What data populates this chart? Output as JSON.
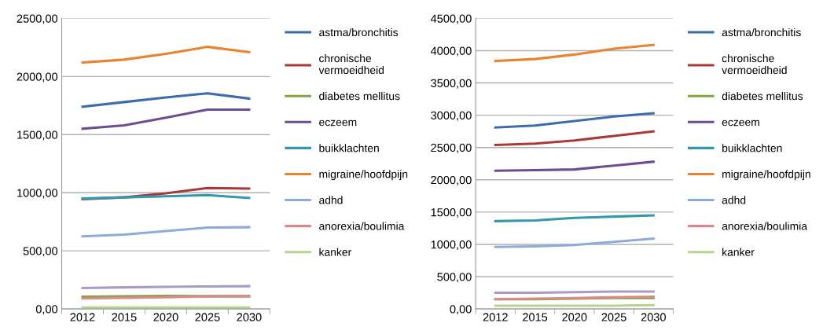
{
  "chart_data": [
    {
      "type": "line",
      "categories": [
        "2012",
        "2015",
        "2020",
        "2025",
        "2030"
      ],
      "ylim": [
        0,
        2500
      ],
      "yticks": [
        {
          "value": 0,
          "label": "0,00"
        },
        {
          "value": 500,
          "label": "500,00"
        },
        {
          "value": 1000,
          "label": "1000,00"
        },
        {
          "value": 1500,
          "label": "1500,00"
        },
        {
          "value": 2000,
          "label": "2000,00"
        },
        {
          "value": 2500,
          "label": "2500,00"
        }
      ],
      "grid": "y",
      "legend": "right",
      "marker": "none",
      "line_style": "solid",
      "series": [
        {
          "name": "astma/bronchitis",
          "color": "#3a6daa",
          "values": [
            1740,
            1780,
            1820,
            1855,
            1810
          ]
        },
        {
          "name": "chronische\nvermoeidheid",
          "color": "#a83a36",
          "values": [
            945,
            960,
            995,
            1040,
            1035
          ]
        },
        {
          "name": "diabetes mellitus",
          "color": "#85a344",
          "values": [
            105,
            108,
            112,
            110,
            110
          ]
        },
        {
          "name": "eczeem",
          "color": "#6e4c94",
          "values": [
            1550,
            1580,
            1645,
            1715,
            1715
          ]
        },
        {
          "name": "buikklachten",
          "color": "#3497b0",
          "values": [
            950,
            960,
            970,
            980,
            955
          ]
        },
        {
          "name": "migraine/hoofdpijn",
          "color": "#e8842f",
          "values": [
            2120,
            2145,
            2195,
            2255,
            2210
          ]
        },
        {
          "name": "adhd",
          "color": "#8eaad8",
          "values": [
            625,
            640,
            670,
            700,
            703
          ]
        },
        {
          "name": "anorexia/boulimia",
          "color": "#d88c8a",
          "values": [
            90,
            95,
            100,
            108,
            110
          ]
        },
        {
          "name": "kanker",
          "color": "#b3d58f",
          "values": [
            12,
            12,
            12,
            12,
            12
          ]
        },
        {
          "color": "#a99bc6",
          "values": [
            180,
            186,
            190,
            194,
            196
          ]
        }
      ]
    },
    {
      "type": "line",
      "categories": [
        "2012",
        "2015",
        "2020",
        "2025",
        "2030"
      ],
      "ylim": [
        0,
        4500
      ],
      "yticks": [
        {
          "value": 0,
          "label": "0,00"
        },
        {
          "value": 500,
          "label": "500,00"
        },
        {
          "value": 1000,
          "label": "1000,00"
        },
        {
          "value": 1500,
          "label": "1500,00"
        },
        {
          "value": 2000,
          "label": "2000,00"
        },
        {
          "value": 2500,
          "label": "2500,00"
        },
        {
          "value": 3000,
          "label": "3000,00"
        },
        {
          "value": 3500,
          "label": "3500,00"
        },
        {
          "value": 4000,
          "label": "4000,00"
        },
        {
          "value": 4500,
          "label": "4500,00"
        }
      ],
      "grid": "y",
      "legend": "right",
      "marker": "none",
      "line_style": "solid",
      "series": [
        {
          "name": "astma/bronchitis",
          "color": "#3a6daa",
          "values": [
            2810,
            2840,
            2910,
            2980,
            3030
          ]
        },
        {
          "name": "chronische\nvermoeidheid",
          "color": "#a83a36",
          "values": [
            2540,
            2560,
            2610,
            2680,
            2750
          ]
        },
        {
          "name": "diabetes mellitus",
          "color": "#85a344",
          "values": [
            150,
            150,
            160,
            170,
            170
          ]
        },
        {
          "name": "eczeem",
          "color": "#6e4c94",
          "values": [
            2140,
            2150,
            2160,
            2220,
            2280
          ]
        },
        {
          "name": "buikklachten",
          "color": "#3497b0",
          "values": [
            1360,
            1370,
            1410,
            1430,
            1450
          ]
        },
        {
          "name": "migraine/hoofdpijn",
          "color": "#e8842f",
          "values": [
            3840,
            3870,
            3940,
            4030,
            4090
          ]
        },
        {
          "name": "adhd",
          "color": "#8eaad8",
          "values": [
            960,
            970,
            990,
            1040,
            1090
          ]
        },
        {
          "name": "anorexia/boulimia",
          "color": "#d88c8a",
          "values": [
            150,
            160,
            170,
            180,
            190
          ]
        },
        {
          "name": "kanker",
          "color": "#b3d58f",
          "values": [
            50,
            50,
            50,
            50,
            60
          ]
        },
        {
          "color": "#a99bc6",
          "values": [
            250,
            250,
            260,
            270,
            270
          ]
        }
      ]
    }
  ]
}
